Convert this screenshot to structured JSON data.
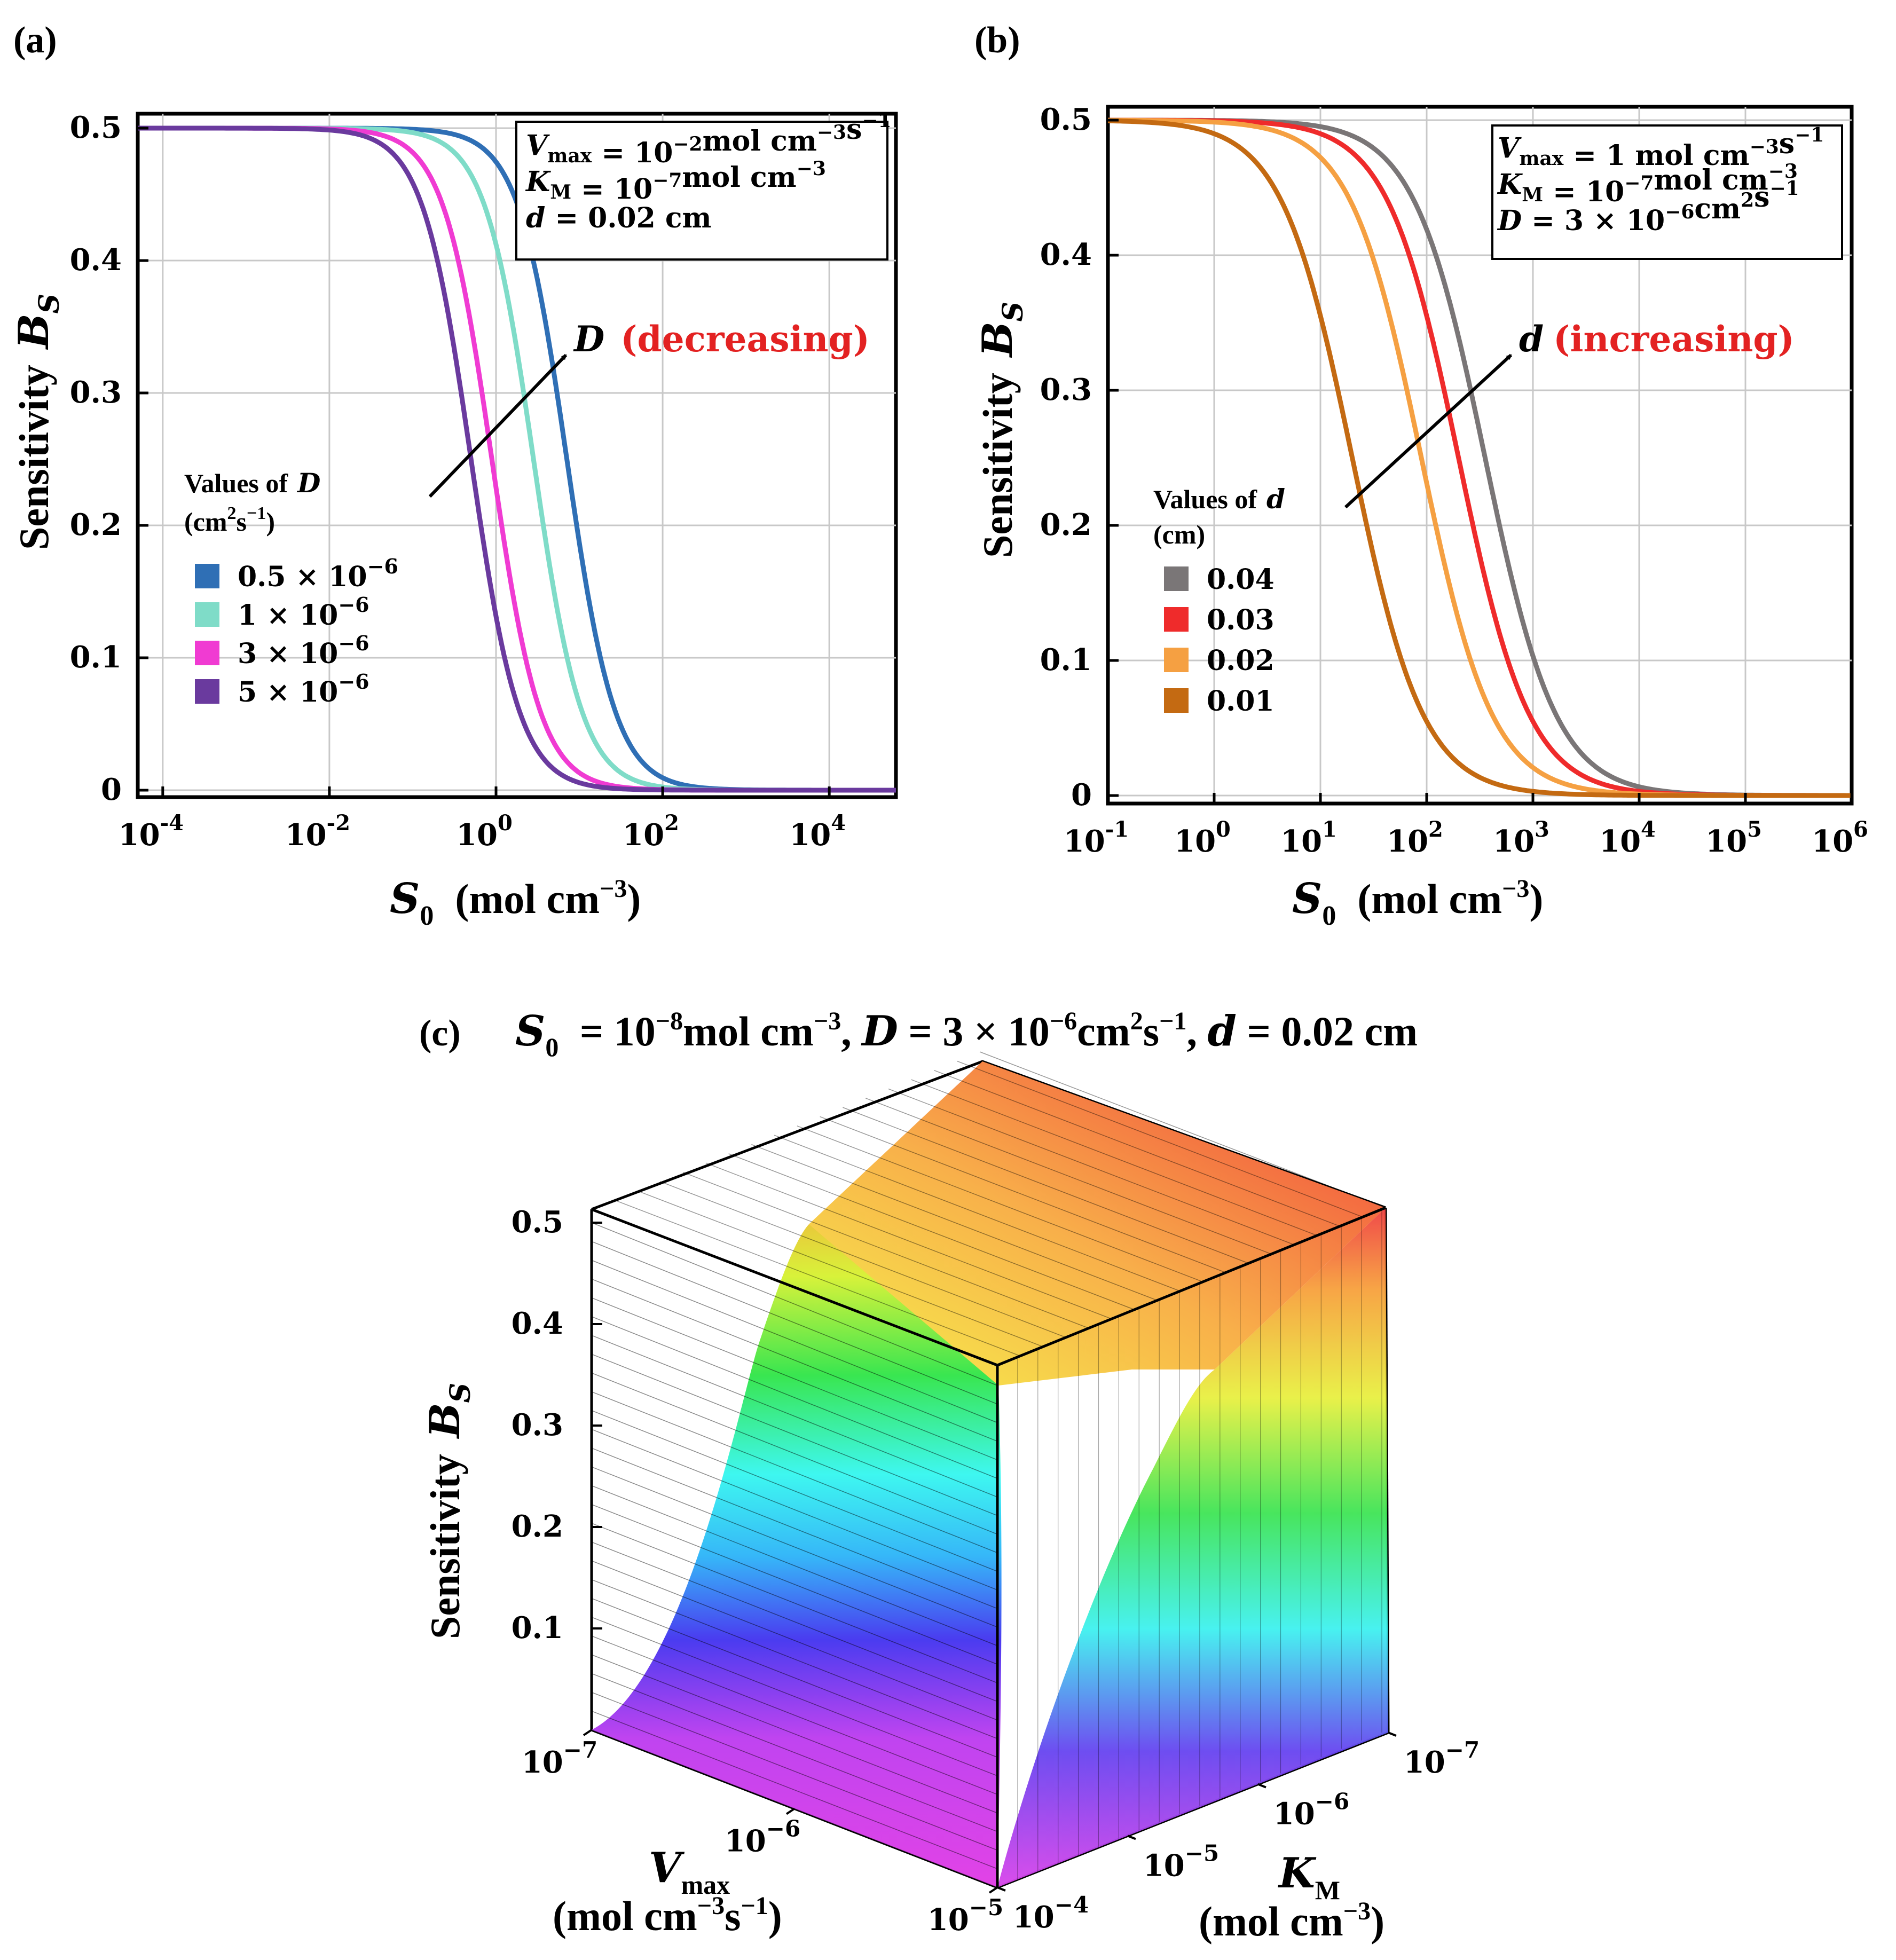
{
  "chart_data": [
    {
      "panel": "(a)",
      "type": "line",
      "xscale": "log",
      "xlim_log10": [
        -4.3,
        4.8
      ],
      "ylim": [
        0,
        0.5
      ],
      "x_ticks": [
        {
          "base": "10",
          "exp": "-4",
          "log10": -4
        },
        {
          "base": "10",
          "exp": "-2",
          "log10": -2
        },
        {
          "base": "10",
          "exp": "0",
          "log10": 0
        },
        {
          "base": "10",
          "exp": "2",
          "log10": 2
        },
        {
          "base": "10",
          "exp": "4",
          "log10": 4
        }
      ],
      "y_ticks": [
        "0",
        "0.1",
        "0.2",
        "0.3",
        "0.4",
        "0.5"
      ],
      "xlabel": {
        "symbol": "S",
        "sub": "0",
        "unit": "(mol cm",
        "unit_exp": "−3",
        "close": ")"
      },
      "ylabel": {
        "text": "Sensitivity",
        "symbol": "B",
        "sub": "S"
      },
      "info_box": [
        {
          "sym": "V",
          "sub": "max",
          "eq": "= 10",
          "sup": "−2",
          "rest": "mol cm",
          "sup2": "−3",
          "rest2": "s",
          "sup3": "−1"
        },
        {
          "sym": "K",
          "sub": "M",
          "eq": "  = 10",
          "sup": "−7",
          "rest": "mol cm",
          "sup2": "−3",
          "rest2": "",
          "sup3": ""
        },
        {
          "sym": "d",
          "sub": "",
          "eq": "      = 0.02 cm",
          "sup": "",
          "rest": "",
          "sup2": "",
          "rest2": "",
          "sup3": ""
        }
      ],
      "annotation": {
        "symbol": "D",
        "text": "(decreasing)"
      },
      "legend_title": {
        "line1": "Values of",
        "symbol": "D",
        "line2_pre": "(cm",
        "line2_sup": "2",
        "line2_mid": "s",
        "line2_sup2": "−1",
        "line2_post": ")"
      },
      "series": [
        {
          "name": "0.5 × 10",
          "exp": "−6",
          "color": "#2f6fb5",
          "midpoint_log10": 0.85,
          "slope": 1.15
        },
        {
          "name": "1 × 10",
          "exp": "−6",
          "color": "#7fdcc8",
          "midpoint_log10": 0.45,
          "slope": 1.15
        },
        {
          "name": "3 × 10",
          "exp": "−6",
          "color": "#f03bd2",
          "midpoint_log10": -0.05,
          "slope": 1.15
        },
        {
          "name": "5 × 10",
          "exp": "−6",
          "color": "#6a3a9e",
          "midpoint_log10": -0.3,
          "slope": 1.15
        }
      ]
    },
    {
      "panel": "(b)",
      "type": "line",
      "xscale": "log",
      "xlim_log10": [
        -1,
        6
      ],
      "ylim": [
        0,
        0.5
      ],
      "x_ticks": [
        {
          "base": "10",
          "exp": "-1",
          "log10": -1
        },
        {
          "base": "10",
          "exp": "0",
          "log10": 0
        },
        {
          "base": "10",
          "exp": "1",
          "log10": 1
        },
        {
          "base": "10",
          "exp": "2",
          "log10": 2
        },
        {
          "base": "10",
          "exp": "3",
          "log10": 3
        },
        {
          "base": "10",
          "exp": "4",
          "log10": 4
        },
        {
          "base": "10",
          "exp": "5",
          "log10": 5
        },
        {
          "base": "10",
          "exp": "6",
          "log10": 6
        }
      ],
      "y_ticks": [
        "0",
        "0.1",
        "0.2",
        "0.3",
        "0.4",
        "0.5"
      ],
      "xlabel": {
        "symbol": "S",
        "sub": "0",
        "unit": "(mol cm",
        "unit_exp": "−3",
        "close": ")"
      },
      "ylabel": {
        "text": "Sensitivity",
        "symbol": "B",
        "sub": "S"
      },
      "info_box": [
        {
          "sym": "V",
          "sub": "max",
          "eq": "= 1 mol cm",
          "sup": "−3",
          "rest": "s",
          "sup2": "−1",
          "rest2": "",
          "sup3": ""
        },
        {
          "sym": "K",
          "sub": "M",
          "eq": "  = 10",
          "sup": "−7",
          "rest": "mol cm",
          "sup2": "−3",
          "rest2": "",
          "sup3": ""
        },
        {
          "sym": "D",
          "sub": "",
          "eq": "      = 3 × 10",
          "sup": "−6",
          "rest": "cm",
          "sup2": "2",
          "rest2": "s",
          "sup3": "−1"
        }
      ],
      "annotation": {
        "symbol": "d",
        "text": "(increasing)"
      },
      "legend_title": {
        "line1": "Values of",
        "symbol": "d",
        "line2_pre": "(cm)",
        "line2_sup": "",
        "line2_mid": "",
        "line2_sup2": "",
        "line2_post": ""
      },
      "series": [
        {
          "name": "0.04",
          "exp": "",
          "color": "#7a7677",
          "midpoint_log10": 2.55,
          "slope": 1.0
        },
        {
          "name": "0.03",
          "exp": "",
          "color": "#ef2b2b",
          "midpoint_log10": 2.3,
          "slope": 1.0
        },
        {
          "name": "0.02",
          "exp": "",
          "color": "#f5a042",
          "midpoint_log10": 1.95,
          "slope": 1.0
        },
        {
          "name": "0.01",
          "exp": "",
          "color": "#c46a12",
          "midpoint_log10": 1.3,
          "slope": 1.0
        }
      ]
    },
    {
      "panel": "(c)",
      "type": "surface3d",
      "title": {
        "s_sym": "S",
        "s_sub": "0",
        "s_eq": " = 10",
        "s_sup": "−8",
        "s_unit": "mol cm",
        "s_unit_sup": "−3",
        "d_sym": "D",
        "d_eq": " = 3 × 10",
        "d_sup": "−6",
        "d_unit": "cm",
        "d_unit_sup": "2",
        "d_unit2": "s",
        "d_unit2_sup": "−1",
        "dd_sym": "d",
        "dd_eq": " = 0.02 cm"
      },
      "z_ticks": [
        "0.1",
        "0.2",
        "0.3",
        "0.4",
        "0.5"
      ],
      "zlim": [
        0,
        0.5
      ],
      "vmax_ticks": [
        {
          "base": "10",
          "exp": "−7"
        },
        {
          "base": "10",
          "exp": "−6"
        },
        {
          "base": "10",
          "exp": "−5"
        }
      ],
      "km_ticks": [
        {
          "base": "10",
          "exp": "−7"
        },
        {
          "base": "10",
          "exp": "−6"
        },
        {
          "base": "10",
          "exp": "−5"
        },
        {
          "base": "10",
          "exp": "−4"
        }
      ],
      "vmax_label": {
        "sym": "V",
        "sub": "max",
        "unit": "(mol cm",
        "unit_sup": "−3",
        "unit2": "s",
        "unit2_sup": "−1",
        "close": ")"
      },
      "km_label": {
        "sym": "K",
        "sub": "M",
        "unit": "(mol cm",
        "unit_sup": "−3",
        "close": ")"
      },
      "zlabel": {
        "text": "Sensitivity",
        "symbol": "B",
        "sub": "S"
      },
      "surface": {
        "low": 0.0,
        "high": 0.5,
        "shape": "sigmoid rising from low-Km/low-Vmax corner toward high plateau"
      }
    }
  ]
}
